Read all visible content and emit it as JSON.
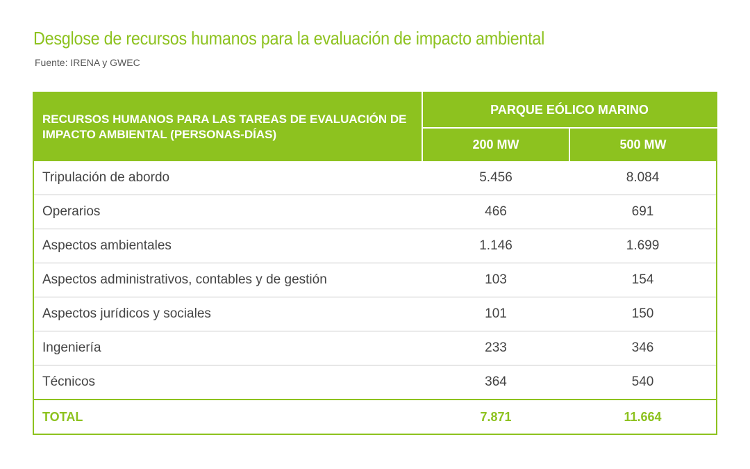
{
  "title": "Desglose de recursos humanos para la evaluación de impacto ambiental",
  "source": "Fuente: IRENA y GWEC",
  "chart_data": {
    "type": "table",
    "header": {
      "row_header": "RECURSOS HUMANOS PARA LAS TAREAS DE EVALUACIÓN DE IMPACTO AMBIENTAL (PERSONAS-DÍAS)",
      "group": "PARQUE EÓLICO MARINO",
      "columns": [
        "200 MW",
        "500 MW"
      ]
    },
    "rows": [
      {
        "label": "Tripulación de abordo",
        "values": [
          "5.456",
          "8.084"
        ]
      },
      {
        "label": "Operarios",
        "values": [
          "466",
          "691"
        ]
      },
      {
        "label": "Aspectos ambientales",
        "values": [
          "1.146",
          "1.699"
        ]
      },
      {
        "label": "Aspectos administrativos, contables y de gestión",
        "values": [
          "103",
          "154"
        ]
      },
      {
        "label": "Aspectos jurídicos y sociales",
        "values": [
          "101",
          "150"
        ]
      },
      {
        "label": "Ingeniería",
        "values": [
          "233",
          "346"
        ]
      },
      {
        "label": "Técnicos",
        "values": [
          "364",
          "540"
        ]
      }
    ],
    "total": {
      "label": "TOTAL",
      "values": [
        "7.871",
        "11.664"
      ]
    },
    "colors": {
      "accent": "#8dc21f",
      "text": "#444444",
      "rule": "#c9c9c9"
    }
  }
}
